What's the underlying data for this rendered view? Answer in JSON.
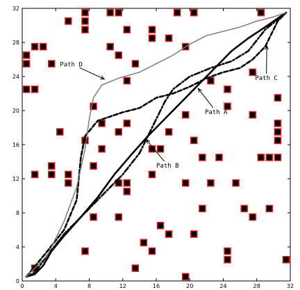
{
  "chart_data": {
    "type": "line",
    "xlim": [
      0,
      32
    ],
    "ylim": [
      0,
      32
    ],
    "x_ticks": [
      "0",
      "4",
      "8",
      "12",
      "16",
      "20",
      "24",
      "28",
      "32"
    ],
    "y_ticks": [
      "0",
      "4",
      "8",
      "12",
      "16",
      "20",
      "24",
      "28",
      "32"
    ],
    "grid": false,
    "legend": "none",
    "obstacle_fill": "#000000",
    "obstacle_edge": "#d62020",
    "obstacles": [
      [
        7.5,
        31.5
      ],
      [
        10.5,
        31.5
      ],
      [
        11.5,
        31.5
      ],
      [
        18.5,
        31.5
      ],
      [
        20.5,
        31.5
      ],
      [
        28.5,
        31.5
      ],
      [
        5.5,
        30.5
      ],
      [
        7.5,
        30.5
      ],
      [
        7.5,
        29.5
      ],
      [
        12.5,
        29.5
      ],
      [
        15.5,
        29.5
      ],
      [
        15.5,
        28.5
      ],
      [
        17.5,
        28.5
      ],
      [
        1.5,
        27.5
      ],
      [
        2.5,
        27.5
      ],
      [
        10.5,
        27.5
      ],
      [
        19.5,
        27.5
      ],
      [
        0.5,
        26.5
      ],
      [
        11.5,
        26.5
      ],
      [
        0.5,
        25.5
      ],
      [
        3.5,
        25.5
      ],
      [
        13.5,
        25.5
      ],
      [
        27.5,
        24.5
      ],
      [
        12.5,
        23.5
      ],
      [
        22.5,
        23.5
      ],
      [
        0.5,
        22.5
      ],
      [
        1.5,
        22.5
      ],
      [
        24.5,
        22.5
      ],
      [
        30.5,
        21.5
      ],
      [
        8.5,
        20.5
      ],
      [
        24.5,
        20.5
      ],
      [
        19.5,
        19.5
      ],
      [
        27.5,
        19.5
      ],
      [
        9.5,
        18.5
      ],
      [
        12.5,
        18.5
      ],
      [
        30.5,
        18.5
      ],
      [
        4.5,
        17.5
      ],
      [
        11.5,
        17.5
      ],
      [
        17.5,
        17.5
      ],
      [
        30.5,
        17.5
      ],
      [
        7.5,
        16.5
      ],
      [
        20.5,
        16.5
      ],
      [
        30.5,
        16.5
      ],
      [
        9.5,
        15.5
      ],
      [
        15.5,
        15.5
      ],
      [
        16.5,
        15.5
      ],
      [
        21.5,
        14.5
      ],
      [
        23.5,
        14.5
      ],
      [
        28.5,
        14.5
      ],
      [
        29.5,
        14.5
      ],
      [
        30.5,
        14.5
      ],
      [
        3.5,
        13.5
      ],
      [
        8.5,
        13.5
      ],
      [
        1.5,
        12.5
      ],
      [
        3.5,
        12.5
      ],
      [
        5.5,
        12.5
      ],
      [
        15.5,
        12.5
      ],
      [
        5.5,
        11.5
      ],
      [
        11.5,
        11.5
      ],
      [
        12.5,
        11.5
      ],
      [
        19.5,
        11.5
      ],
      [
        22.5,
        11.5
      ],
      [
        25.5,
        11.5
      ],
      [
        12.5,
        10.5
      ],
      [
        21.5,
        8.5
      ],
      [
        26.5,
        8.5
      ],
      [
        29.5,
        8.5
      ],
      [
        8.5,
        7.5
      ],
      [
        11.5,
        7.5
      ],
      [
        27.5,
        7.5
      ],
      [
        16.5,
        6.5
      ],
      [
        17.5,
        5.5
      ],
      [
        20.5,
        5.5
      ],
      [
        14.5,
        4.5
      ],
      [
        7.5,
        3.5
      ],
      [
        15.5,
        3.5
      ],
      [
        24.5,
        3.5
      ],
      [
        24.5,
        2.5
      ],
      [
        31.5,
        2.5
      ],
      [
        1.5,
        1.5
      ],
      [
        13.5,
        1.5
      ],
      [
        19.5,
        0.5
      ]
    ],
    "series": [
      {
        "name": "Path A",
        "style": "solid",
        "points": [
          [
            0.5,
            0.5
          ],
          [
            1.5,
            0.8
          ],
          [
            2.5,
            1.8
          ],
          [
            3.5,
            3.5
          ],
          [
            5,
            5.3
          ],
          [
            7,
            7.5
          ],
          [
            9,
            9.8
          ],
          [
            11,
            12.5
          ],
          [
            13,
            14.8
          ],
          [
            15,
            17
          ],
          [
            17,
            19
          ],
          [
            19,
            21
          ],
          [
            21,
            23
          ],
          [
            23,
            25
          ],
          [
            25,
            27
          ],
          [
            27,
            28.5
          ],
          [
            29,
            29.8
          ],
          [
            31.5,
            31.5
          ]
        ]
      },
      {
        "name": "Path B",
        "style": "dashdot",
        "points": [
          [
            0.5,
            0.5
          ],
          [
            1.5,
            1
          ],
          [
            3,
            3
          ],
          [
            5,
            5.5
          ],
          [
            8,
            8.5
          ],
          [
            10,
            10.5
          ],
          [
            12,
            12.5
          ],
          [
            14,
            15
          ],
          [
            16,
            19
          ],
          [
            17,
            21
          ],
          [
            18,
            22.5
          ],
          [
            20,
            24
          ],
          [
            22.5,
            25
          ],
          [
            25,
            25.8
          ],
          [
            27,
            27
          ],
          [
            29,
            29.5
          ],
          [
            31.5,
            31.5
          ]
        ]
      },
      {
        "name": "Path C",
        "style": "dashed",
        "points": [
          [
            0.5,
            0.5
          ],
          [
            3,
            3.5
          ],
          [
            5,
            6
          ],
          [
            6.5,
            9.5
          ],
          [
            7,
            14.5
          ],
          [
            7.5,
            17
          ],
          [
            9,
            18.8
          ],
          [
            12,
            19.8
          ],
          [
            14,
            20.3
          ],
          [
            16,
            21.5
          ],
          [
            18,
            22
          ],
          [
            20,
            22.8
          ],
          [
            22,
            23.8
          ],
          [
            24,
            24.5
          ],
          [
            26,
            25
          ],
          [
            27.5,
            26
          ],
          [
            29,
            27.5
          ],
          [
            30.5,
            30.5
          ],
          [
            31.5,
            31.5
          ]
        ]
      },
      {
        "name": "Path D",
        "style": "dotted",
        "points": [
          [
            0.5,
            0.5
          ],
          [
            3,
            3
          ],
          [
            5,
            7
          ],
          [
            6.5,
            11
          ],
          [
            7.5,
            15.5
          ],
          [
            8,
            19
          ],
          [
            8.5,
            21.5
          ],
          [
            9.5,
            23
          ],
          [
            11.5,
            23.8
          ],
          [
            14,
            24.5
          ],
          [
            16,
            25.5
          ],
          [
            18,
            26.5
          ],
          [
            20,
            27.8
          ],
          [
            22,
            28.8
          ],
          [
            24,
            29.3
          ],
          [
            26,
            29.8
          ],
          [
            28,
            30.5
          ],
          [
            30,
            31
          ],
          [
            31.5,
            31.5
          ]
        ]
      }
    ],
    "annotations": [
      {
        "text": "Path D",
        "anchor": [
          9.8,
          23.7
        ],
        "label_pos": [
          4.5,
          25.2
        ]
      },
      {
        "text": "Path A",
        "anchor": [
          21,
          22.6
        ],
        "label_pos": [
          21.8,
          19.6
        ]
      },
      {
        "text": "Path B",
        "anchor": [
          14.8,
          16.6
        ],
        "label_pos": [
          16,
          13.3
        ]
      },
      {
        "text": "Path C",
        "anchor": [
          29.2,
          27.6
        ],
        "label_pos": [
          27.8,
          23.6
        ]
      }
    ]
  }
}
